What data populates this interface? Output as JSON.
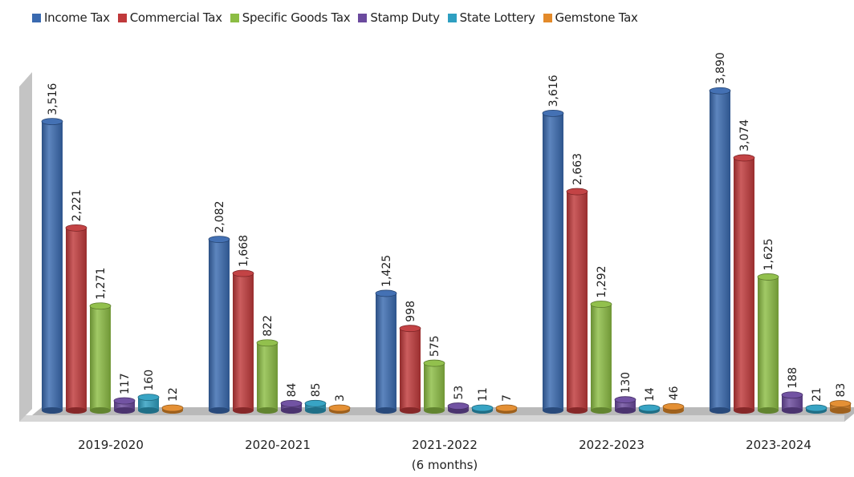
{
  "chart_data": {
    "type": "bar",
    "categories": [
      "2019-2020",
      "2020-2021",
      "2021-2022",
      "2022-2023",
      "2023-2024"
    ],
    "category_sublabels": [
      "",
      "",
      "(6 months)",
      "",
      ""
    ],
    "series": [
      {
        "name": "Income Tax",
        "color": "#3a6ab0",
        "values": [
          3516,
          2082,
          1425,
          3616,
          3890
        ]
      },
      {
        "name": "Commercial Tax",
        "color": "#c0393b",
        "values": [
          2221,
          1668,
          998,
          2663,
          3074
        ]
      },
      {
        "name": "Specific Goods Tax",
        "color": "#8cbd44",
        "values": [
          1271,
          822,
          575,
          1292,
          1625
        ]
      },
      {
        "name": "Stamp Duty",
        "color": "#6b4a9e",
        "values": [
          117,
          84,
          53,
          130,
          188
        ]
      },
      {
        "name": "State Lottery",
        "color": "#2e9fc1",
        "values": [
          160,
          85,
          11,
          14,
          21
        ]
      },
      {
        "name": "Gemstone Tax",
        "color": "#e38a2a",
        "values": [
          12,
          3,
          7,
          46,
          83
        ]
      }
    ],
    "data_labels": [
      [
        "3,516",
        "2,082",
        "1,425",
        "3,616",
        "3,890"
      ],
      [
        "2,221",
        "1,668",
        "998",
        "2,663",
        "3,074"
      ],
      [
        "1,271",
        "822",
        "575",
        "1,292",
        "1,625"
      ],
      [
        "117",
        "84",
        "53",
        "130",
        "188"
      ],
      [
        "160",
        "85",
        "11",
        "14",
        "21"
      ],
      [
        "12",
        "3",
        "7",
        "46",
        "83"
      ]
    ],
    "ylim": [
      0,
      4000
    ],
    "grid": false,
    "legend_position": "top",
    "title": "",
    "xlabel": "",
    "ylabel": ""
  }
}
